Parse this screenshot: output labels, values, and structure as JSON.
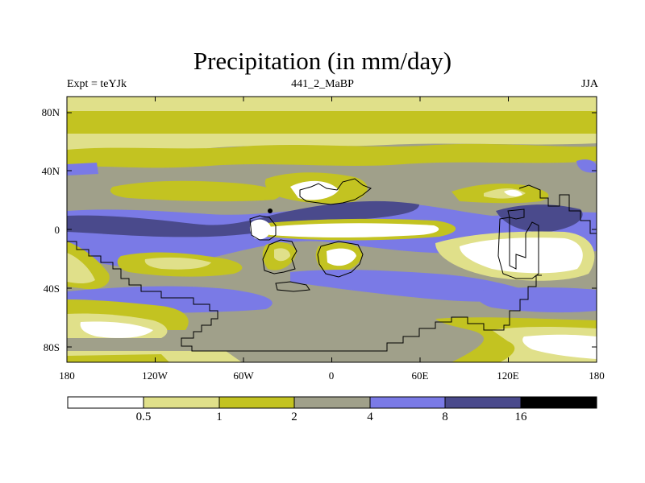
{
  "header": {
    "title": "Precipitation (in mm/day)",
    "left_label": "Expt = teYJk",
    "center_label": "441_2_MaBP",
    "right_label": "JJA"
  },
  "axes": {
    "y_ticks": [
      "80N",
      "40N",
      "0",
      "40S",
      "80S"
    ],
    "x_ticks": [
      "180",
      "120W",
      "60W",
      "0",
      "60E",
      "120E",
      "180"
    ]
  },
  "colorbar": {
    "labels": [
      "0.5",
      "1",
      "2",
      "4",
      "8",
      "16"
    ],
    "colors": [
      "#ffffff",
      "#e0e08a",
      "#c3c321",
      "#a0a08a",
      "#7a7ae6",
      "#4a4a8c",
      "#000000"
    ]
  },
  "palette": {
    "white": "#ffffff",
    "light_yellow": "#e0e08a",
    "olive": "#c3c321",
    "gray": "#a0a08a",
    "blue": "#7a7ae6",
    "dark_blue": "#4a4a8c",
    "black": "#000000"
  }
}
